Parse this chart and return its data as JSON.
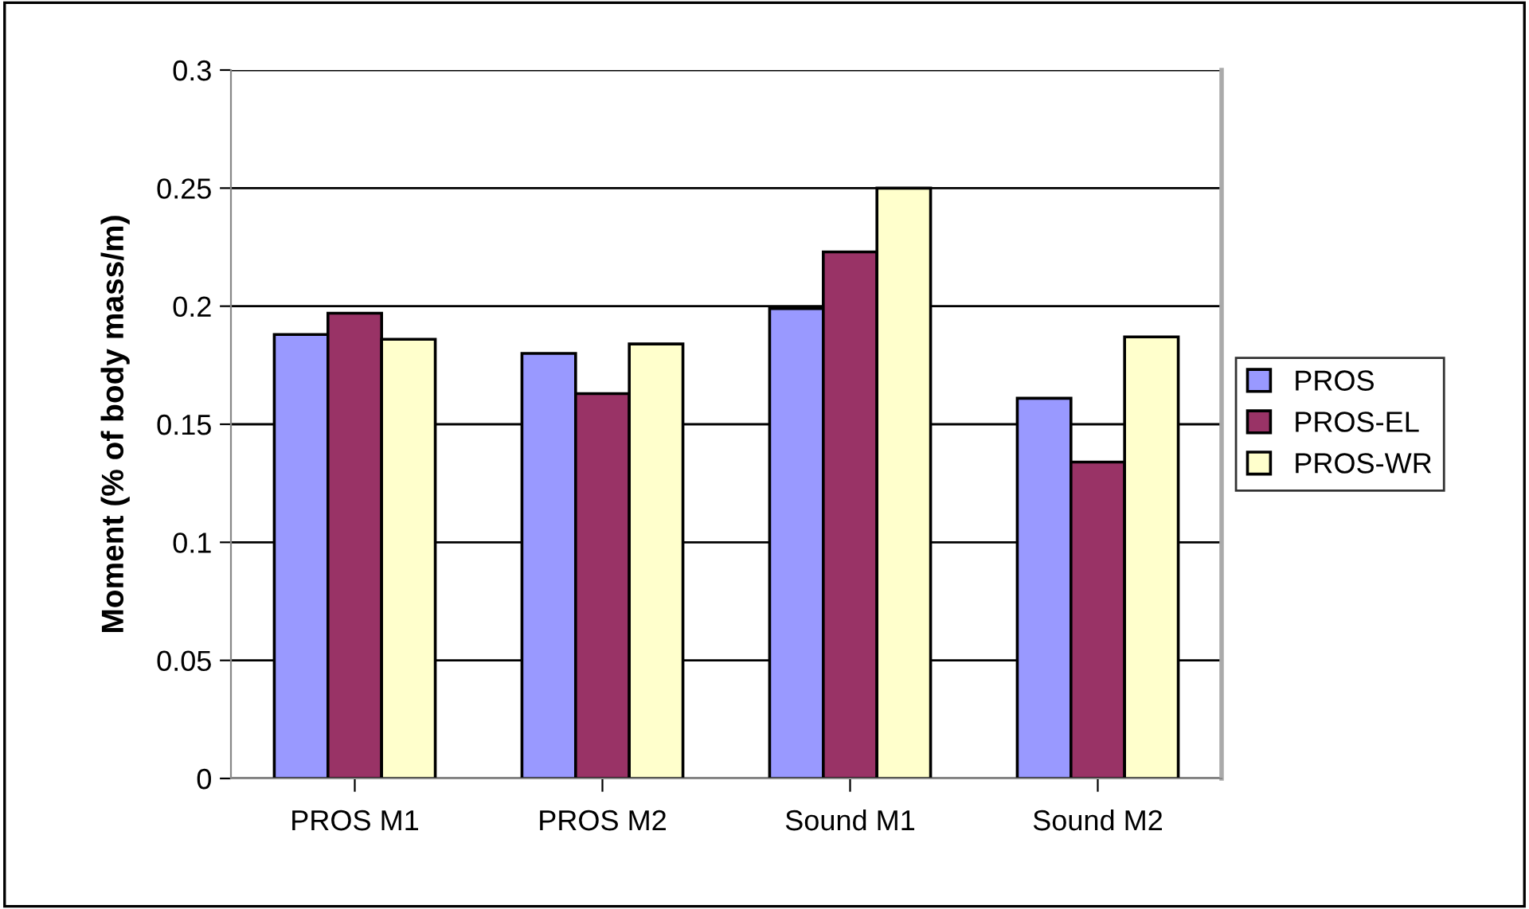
{
  "chart_data": {
    "type": "bar",
    "ylabel": "Moment (% of body mass/m)",
    "categories": [
      "PROS M1",
      "PROS M2",
      "Sound M1",
      "Sound M2"
    ],
    "series": [
      {
        "name": "PROS",
        "color": "#9999ff",
        "values": [
          0.188,
          0.18,
          0.199,
          0.161
        ]
      },
      {
        "name": "PROS-EL",
        "color": "#993366",
        "values": [
          0.197,
          0.163,
          0.223,
          0.134
        ]
      },
      {
        "name": "PROS-WR",
        "color": "#ffffcc",
        "values": [
          0.186,
          0.184,
          0.25,
          0.187
        ]
      }
    ],
    "ylim": [
      0,
      0.3
    ],
    "yticks": [
      0,
      0.05,
      0.1,
      0.15,
      0.2,
      0.25,
      0.3
    ],
    "grid": "y",
    "legend": "right"
  }
}
